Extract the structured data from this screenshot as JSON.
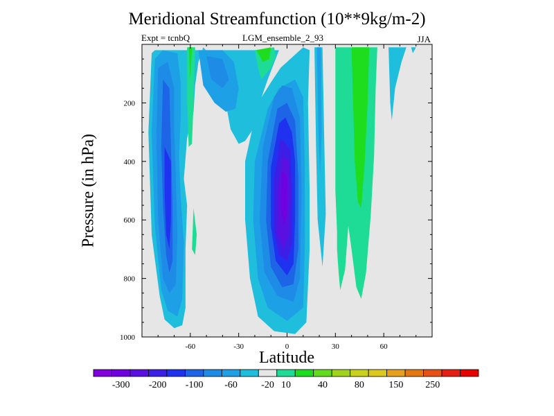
{
  "chart_data": {
    "type": "heatmap",
    "subtype": "filled-contour",
    "title": "Meridional Streamfunction (10**9kg/m-2)",
    "left_string": "Expt = tcnbQ",
    "center_string": "LGM_ensemble_2_93",
    "right_string": "JJA",
    "xlabel": "Latitude",
    "ylabel": "Pressure (in hPa)",
    "xlim": [
      -90,
      90
    ],
    "ylim": [
      1000,
      0
    ],
    "xticks": [
      -60,
      -30,
      0,
      30,
      60
    ],
    "xtick_labels": [
      "-60",
      "-30",
      "0",
      "30",
      "60"
    ],
    "yticks": [
      200,
      400,
      600,
      800,
      1000
    ],
    "ytick_labels": [
      "200",
      "400",
      "600",
      "800",
      "1000"
    ],
    "background_level_color": "#e6e6e6",
    "colorbar": {
      "colors": [
        "#8200dc",
        "#7000e0",
        "#5a10e0",
        "#3c1ee6",
        "#1e32f0",
        "#1e64e6",
        "#1e8ce6",
        "#1ea0e6",
        "#1ebedc",
        "#e6e6e6",
        "#1edc96",
        "#1edc1e",
        "#64dc1e",
        "#a0d21e",
        "#c8d21e",
        "#dcc81e",
        "#e6a01e",
        "#e67814",
        "#e65014",
        "#e61e14",
        "#e60000"
      ],
      "labels": [
        "-300",
        "-200",
        "-100",
        "-60",
        "-20",
        "10",
        "40",
        "80",
        "150",
        "250"
      ]
    },
    "contour_regions": [
      {
        "name": "southern-cell-outer",
        "color_index": 8,
        "points": [
          [
            -84,
            30
          ],
          [
            -86,
            300
          ],
          [
            -84,
            650
          ],
          [
            -79,
            860
          ],
          [
            -76,
            940
          ],
          [
            -70,
            970
          ],
          [
            -65,
            960
          ],
          [
            -63,
            900
          ],
          [
            -63,
            700
          ],
          [
            -62,
            550
          ],
          [
            -64,
            460
          ],
          [
            -62,
            320
          ],
          [
            -58,
            230
          ],
          [
            -57,
            140
          ],
          [
            -55,
            60
          ],
          [
            -52,
            10
          ],
          [
            -47,
            40
          ],
          [
            -44,
            110
          ],
          [
            -38,
            200
          ],
          [
            -35,
            290
          ],
          [
            -30,
            340
          ],
          [
            -26,
            330
          ],
          [
            -20,
            280
          ],
          [
            -17,
            200
          ],
          [
            -12,
            120
          ],
          [
            -5,
            20
          ],
          [
            -82,
            20
          ]
        ]
      },
      {
        "name": "southern-cell-2",
        "color_index": 7,
        "points": [
          [
            -82,
            50
          ],
          [
            -84,
            300
          ],
          [
            -82,
            620
          ],
          [
            -78,
            840
          ],
          [
            -74,
            910
          ],
          [
            -68,
            930
          ],
          [
            -65,
            870
          ],
          [
            -64,
            680
          ],
          [
            -66,
            520
          ],
          [
            -67,
            380
          ],
          [
            -66,
            250
          ],
          [
            -66,
            130
          ],
          [
            -68,
            30
          ],
          [
            -77,
            20
          ]
        ]
      },
      {
        "name": "southern-cell-3",
        "color_index": 6,
        "points": [
          [
            -80,
            80
          ],
          [
            -81,
            320
          ],
          [
            -80,
            600
          ],
          [
            -77,
            800
          ],
          [
            -73,
            850
          ],
          [
            -69,
            820
          ],
          [
            -68,
            650
          ],
          [
            -69,
            450
          ],
          [
            -70,
            300
          ],
          [
            -70,
            150
          ],
          [
            -74,
            60
          ]
        ]
      },
      {
        "name": "southern-cell-4",
        "color_index": 5,
        "points": [
          [
            -77,
            120
          ],
          [
            -78,
            350
          ],
          [
            -77,
            550
          ],
          [
            -75,
            720
          ],
          [
            -73,
            780
          ],
          [
            -71,
            740
          ],
          [
            -71,
            550
          ],
          [
            -72,
            350
          ],
          [
            -73,
            150
          ]
        ]
      },
      {
        "name": "southern-cell-core",
        "color_index": 4,
        "points": [
          [
            -76,
            350
          ],
          [
            -76,
            500
          ],
          [
            -75,
            650
          ],
          [
            -73,
            700
          ],
          [
            -72,
            600
          ],
          [
            -72,
            400
          ]
        ]
      },
      {
        "name": "sh-upper-inner",
        "color_index": 7,
        "points": [
          [
            -55,
            20
          ],
          [
            -52,
            140
          ],
          [
            -45,
            200
          ],
          [
            -38,
            230
          ],
          [
            -32,
            220
          ],
          [
            -30,
            150
          ],
          [
            -33,
            60
          ],
          [
            -40,
            20
          ]
        ]
      },
      {
        "name": "sh-upper-core",
        "color_index": 6,
        "points": [
          [
            -50,
            40
          ],
          [
            -47,
            120
          ],
          [
            -40,
            150
          ],
          [
            -36,
            120
          ],
          [
            -40,
            50
          ]
        ]
      },
      {
        "name": "sh-positive-strip",
        "color_index": 10,
        "points": [
          [
            -62,
            10
          ],
          [
            -62,
            200
          ],
          [
            -61,
            350
          ],
          [
            -59,
            340
          ],
          [
            -58,
            200
          ],
          [
            -57,
            10
          ]
        ]
      },
      {
        "name": "sh-positive-strip-core",
        "color_index": 11,
        "points": [
          [
            -61,
            10
          ],
          [
            -60,
            120
          ],
          [
            -59,
            10
          ]
        ]
      },
      {
        "name": "sh-positive-blob",
        "color_index": 10,
        "points": [
          [
            -58,
            560
          ],
          [
            -59,
            700
          ],
          [
            -57,
            720
          ],
          [
            -56,
            650
          ]
        ]
      },
      {
        "name": "equatorial-positive-top",
        "color_index": 10,
        "points": [
          [
            -20,
            20
          ],
          [
            -18,
            80
          ],
          [
            -16,
            120
          ],
          [
            -10,
            80
          ],
          [
            -7,
            40
          ],
          [
            -8,
            10
          ]
        ]
      },
      {
        "name": "equatorial-positive-top-core",
        "color_index": 11,
        "points": [
          [
            -19,
            20
          ],
          [
            -15,
            60
          ],
          [
            -11,
            50
          ],
          [
            -10,
            10
          ]
        ]
      },
      {
        "name": "equatorial-cell-outer",
        "color_index": 8,
        "points": [
          [
            -18,
            200
          ],
          [
            -26,
            400
          ],
          [
            -26,
            600
          ],
          [
            -23,
            800
          ],
          [
            -18,
            930
          ],
          [
            -8,
            980
          ],
          [
            5,
            990
          ],
          [
            12,
            950
          ],
          [
            14,
            700
          ],
          [
            14,
            500
          ],
          [
            13,
            200
          ],
          [
            14,
            20
          ],
          [
            10,
            10
          ],
          [
            4,
            40
          ],
          [
            -4,
            80
          ],
          [
            -10,
            130
          ]
        ]
      },
      {
        "name": "equatorial-cell-2",
        "color_index": 7,
        "points": [
          [
            -12,
            220
          ],
          [
            -20,
            400
          ],
          [
            -21,
            600
          ],
          [
            -18,
            800
          ],
          [
            -12,
            900
          ],
          [
            0,
            945
          ],
          [
            10,
            900
          ],
          [
            11,
            700
          ],
          [
            11,
            400
          ],
          [
            10,
            180
          ],
          [
            5,
            120
          ],
          [
            -5,
            150
          ]
        ]
      },
      {
        "name": "equatorial-cell-3",
        "color_index": 6,
        "points": [
          [
            -8,
            180
          ],
          [
            -15,
            350
          ],
          [
            -17,
            600
          ],
          [
            -14,
            780
          ],
          [
            -6,
            860
          ],
          [
            4,
            880
          ],
          [
            8,
            800
          ],
          [
            9,
            500
          ],
          [
            8,
            250
          ],
          [
            3,
            150
          ],
          [
            -3,
            140
          ]
        ]
      },
      {
        "name": "equatorial-cell-4",
        "color_index": 5,
        "points": [
          [
            -6,
            220
          ],
          [
            -12,
            400
          ],
          [
            -13,
            600
          ],
          [
            -10,
            760
          ],
          [
            -3,
            830
          ],
          [
            4,
            820
          ],
          [
            7,
            700
          ],
          [
            7,
            450
          ],
          [
            5,
            260
          ],
          [
            0,
            200
          ]
        ]
      },
      {
        "name": "equatorial-cell-5",
        "color_index": 4,
        "points": [
          [
            -5,
            270
          ],
          [
            -10,
            420
          ],
          [
            -10,
            620
          ],
          [
            -7,
            740
          ],
          [
            0,
            790
          ],
          [
            4,
            750
          ],
          [
            5,
            600
          ],
          [
            5,
            400
          ],
          [
            3,
            300
          ],
          [
            -1,
            250
          ]
        ]
      },
      {
        "name": "equatorial-cell-6",
        "color_index": 3,
        "points": [
          [
            -4,
            320
          ],
          [
            -8,
            460
          ],
          [
            -8,
            640
          ],
          [
            -5,
            720
          ],
          [
            0,
            740
          ],
          [
            3,
            680
          ],
          [
            3,
            500
          ],
          [
            2,
            360
          ]
        ]
      },
      {
        "name": "equatorial-cell-7",
        "color_index": 2,
        "points": [
          [
            -3,
            380
          ],
          [
            -6,
            500
          ],
          [
            -6,
            650
          ],
          [
            -2,
            700
          ],
          [
            1,
            650
          ],
          [
            2,
            500
          ],
          [
            1,
            400
          ]
        ]
      },
      {
        "name": "equatorial-cell-core",
        "color_index": 1,
        "points": [
          [
            -3,
            430
          ],
          [
            -4,
            560
          ],
          [
            -2,
            620
          ],
          [
            0,
            580
          ],
          [
            0,
            450
          ]
        ]
      },
      {
        "name": "nh-strip-negative-outer",
        "color_index": 8,
        "points": [
          [
            17,
            10
          ],
          [
            18,
            350
          ],
          [
            19,
            600
          ],
          [
            22,
            760
          ],
          [
            24,
            580
          ],
          [
            23,
            300
          ],
          [
            22,
            10
          ]
        ]
      },
      {
        "name": "nh-strip-negative-inner",
        "color_index": 7,
        "points": [
          [
            18.5,
            10
          ],
          [
            19.5,
            300
          ],
          [
            20.5,
            450
          ],
          [
            21.5,
            300
          ],
          [
            21,
            10
          ]
        ]
      },
      {
        "name": "nh-positive-outer",
        "color_index": 10,
        "points": [
          [
            30,
            10
          ],
          [
            30,
            500
          ],
          [
            31,
            640
          ],
          [
            31,
            700
          ],
          [
            32,
            780
          ],
          [
            33,
            840
          ],
          [
            36,
            770
          ],
          [
            38,
            620
          ],
          [
            40,
            700
          ],
          [
            43,
            830
          ],
          [
            46,
            870
          ],
          [
            49,
            780
          ],
          [
            52,
            580
          ],
          [
            54,
            380
          ],
          [
            55,
            150
          ],
          [
            56,
            10
          ]
        ]
      },
      {
        "name": "nh-positive-inner",
        "color_index": 11,
        "points": [
          [
            40,
            10
          ],
          [
            41,
            200
          ],
          [
            42,
            400
          ],
          [
            44,
            540
          ],
          [
            46,
            560
          ],
          [
            48,
            420
          ],
          [
            50,
            200
          ],
          [
            51,
            10
          ]
        ]
      },
      {
        "name": "nh-upper-negative",
        "color_index": 8,
        "points": [
          [
            63,
            10
          ],
          [
            64,
            200
          ],
          [
            65,
            260
          ],
          [
            67,
            150
          ],
          [
            71,
            60
          ],
          [
            74,
            10
          ]
        ]
      },
      {
        "name": "nh-upper-negative-small",
        "color_index": 8,
        "points": [
          [
            77,
            10
          ],
          [
            78,
            30
          ],
          [
            80,
            10
          ]
        ]
      }
    ]
  }
}
